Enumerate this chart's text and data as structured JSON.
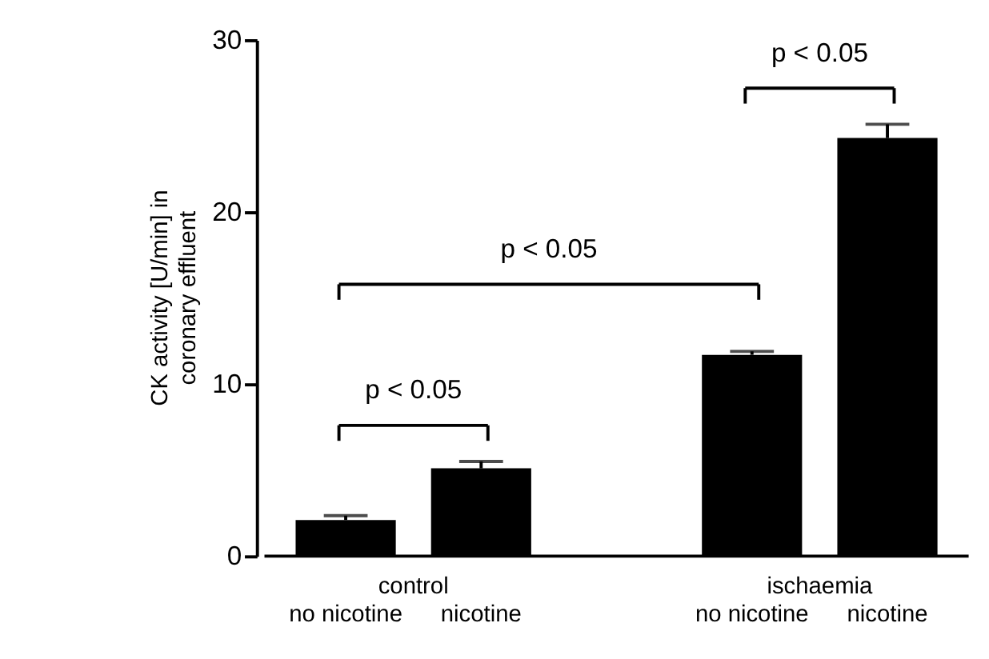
{
  "chart_data": {
    "type": "bar",
    "ylabel": "CK activity [U/min] in coronary effluent",
    "categories": [
      "no nicotine",
      "nicotine",
      "no nicotine",
      "nicotine"
    ],
    "values": [
      2.1,
      5.1,
      11.7,
      24.3
    ],
    "errors": [
      0.25,
      0.4,
      0.2,
      0.8
    ],
    "color": "#000000",
    "ylim": [
      0,
      30
    ],
    "yticks": [
      0,
      10,
      20,
      30
    ],
    "grid": false,
    "annotations": [
      "control",
      "ischaemia",
      "p < 0.05",
      "p < 0.05",
      "p < 0.05"
    ]
  }
}
